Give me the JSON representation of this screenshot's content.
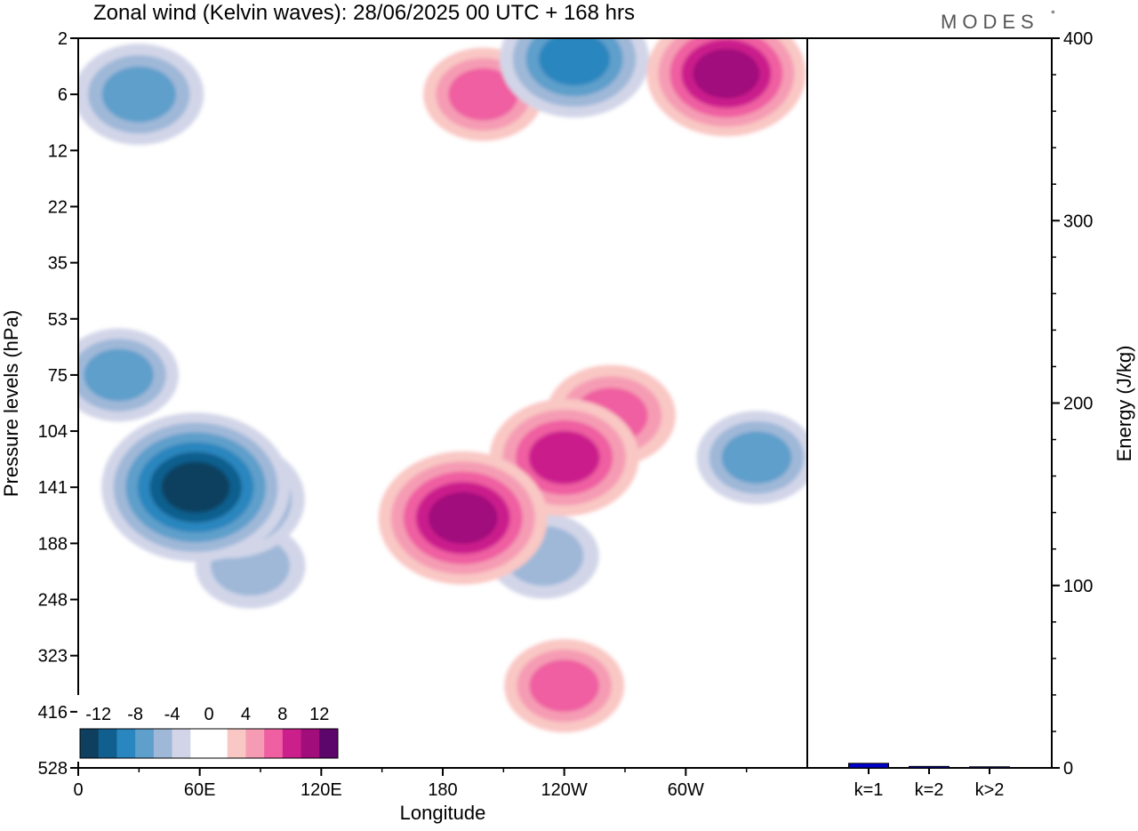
{
  "title": "Zonal wind (Kelvin waves):  28/06/2025  00 UTC  + 168 hrs",
  "logo": {
    "text": "MODES",
    "mark": "°"
  },
  "chart_data": [
    {
      "type": "heatmap",
      "xlabel": "Longitude",
      "ylabel": "Pressure levels (hPa)",
      "x_ticks": [
        "0",
        "60E",
        "120E",
        "180",
        "120W",
        "60W"
      ],
      "x_tick_values": [
        0,
        60,
        120,
        180,
        240,
        300
      ],
      "xlim": [
        0,
        360
      ],
      "y_ticks": [
        "2",
        "6",
        "12",
        "22",
        "35",
        "53",
        "75",
        "104",
        "141",
        "188",
        "248",
        "323",
        "416",
        "528"
      ],
      "colorbar": {
        "labels": [
          "-12",
          "-8",
          "-4",
          "0",
          "4",
          "8",
          "12"
        ],
        "levels": [
          -14,
          -12,
          -10,
          -8,
          -6,
          -4,
          -2,
          0,
          2,
          4,
          6,
          8,
          10,
          12,
          14
        ],
        "colors": [
          "#0e3f5e",
          "#115f8e",
          "#2a86be",
          "#5f9fcb",
          "#9fb8d8",
          "#d2d5e8",
          "#ffffff",
          "#ffffff",
          "#f9c7c4",
          "#f59cb4",
          "#ef5fa1",
          "#cb1f8c",
          "#a10d7b",
          "#5c056a"
        ]
      },
      "features": [
        {
          "lon": 58,
          "level": 141,
          "value": -12
        },
        {
          "lon": 75,
          "level": 150,
          "value": -8
        },
        {
          "lon": 85,
          "level": 210,
          "value": -4
        },
        {
          "lon": 30,
          "level": 6,
          "value": -6
        },
        {
          "lon": 245,
          "level": 3,
          "value": -8
        },
        {
          "lon": 190,
          "level": 165,
          "value": 10
        },
        {
          "lon": 240,
          "level": 120,
          "value": 8
        },
        {
          "lon": 263,
          "level": 95,
          "value": 6
        },
        {
          "lon": 240,
          "level": 370,
          "value": 5
        },
        {
          "lon": 320,
          "level": 4,
          "value": 9
        },
        {
          "lon": 200,
          "level": 6,
          "value": 5
        },
        {
          "lon": 335,
          "level": 120,
          "value": -5
        },
        {
          "lon": 230,
          "level": 200,
          "value": -4
        },
        {
          "lon": 20,
          "level": 75,
          "value": -5
        }
      ]
    },
    {
      "type": "bar",
      "ylabel": "Energy (J/kg)",
      "categories": [
        "k=1",
        "k=2",
        "k>2"
      ],
      "values": [
        2.5,
        0.8,
        0.6
      ],
      "ylim": [
        0,
        400
      ],
      "y_ticks": [
        0,
        100,
        200,
        300,
        400
      ],
      "bar_color": "#0000cc"
    }
  ]
}
